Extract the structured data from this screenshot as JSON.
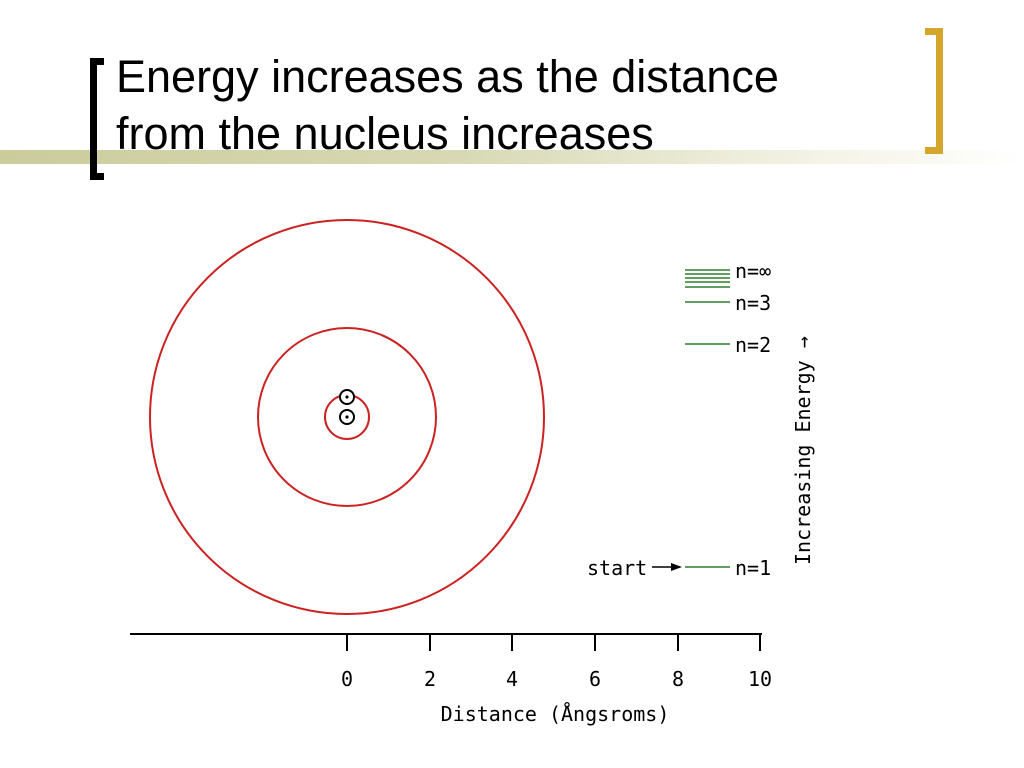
{
  "slide": {
    "title_line1": "Energy increases as the distance",
    "title_line2": "from the nucleus increases"
  },
  "diagram": {
    "levels": [
      {
        "label": "n=∞"
      },
      {
        "label": "n=3"
      },
      {
        "label": "n=2"
      },
      {
        "label": "n=1"
      }
    ],
    "start_label": "start",
    "energy_axis_label": "Increasing Energy →",
    "axis": {
      "title": "Distance (Ångsroms)",
      "ticks": [
        "0",
        "2",
        "4",
        "6",
        "8",
        "10"
      ]
    },
    "colors": {
      "orbit": "#cc2222",
      "level_line": "#2e7d2e",
      "bracket_left": "#000000",
      "bracket_right": "#d4a72c"
    }
  }
}
